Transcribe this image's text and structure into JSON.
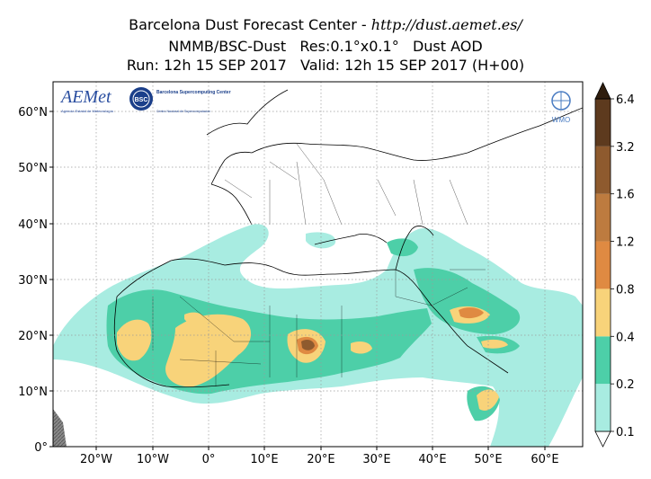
{
  "title": {
    "line1_prefix": "Barcelona Dust Forecast Center - ",
    "line1_url": "http://dust.aemet.es/",
    "line2": "NMMB/BSC-Dust   Res:0.1°x0.1°   Dust AOD",
    "line3": "Run: 12h 15 SEP 2017   Valid: 12h 15 SEP 2017 (H+00)"
  },
  "logos": {
    "aemet_text": "AEMet",
    "aemet_sub": "Agencia Estatal de Meteorología",
    "bsc_badge": "BSC",
    "bsc_name": "Barcelona Supercomputing Center",
    "bsc_sub": "Centro Nacional de Supercomputación",
    "wmo_text": "WMO"
  },
  "axes": {
    "y_ticks": [
      "60°N",
      "50°N",
      "40°N",
      "30°N",
      "20°N",
      "10°N",
      "0°"
    ],
    "x_ticks": [
      "20°W",
      "10°W",
      "0°",
      "10°E",
      "20°E",
      "30°E",
      "40°E",
      "50°E",
      "60°E"
    ]
  },
  "colorbar": {
    "levels": [
      "0.1",
      "0.2",
      "0.4",
      "0.8",
      "1.2",
      "1.6",
      "3.2",
      "6.4"
    ],
    "colors": [
      "#a8ece1",
      "#4dcfa8",
      "#f8d37a",
      "#df8a42",
      "#bd7b3f",
      "#8e5a2e",
      "#5d3a1e",
      "#2f1d0d"
    ]
  },
  "colors": {
    "ocean": "#ffffff",
    "no_data": "#737373",
    "border": "#000000"
  }
}
